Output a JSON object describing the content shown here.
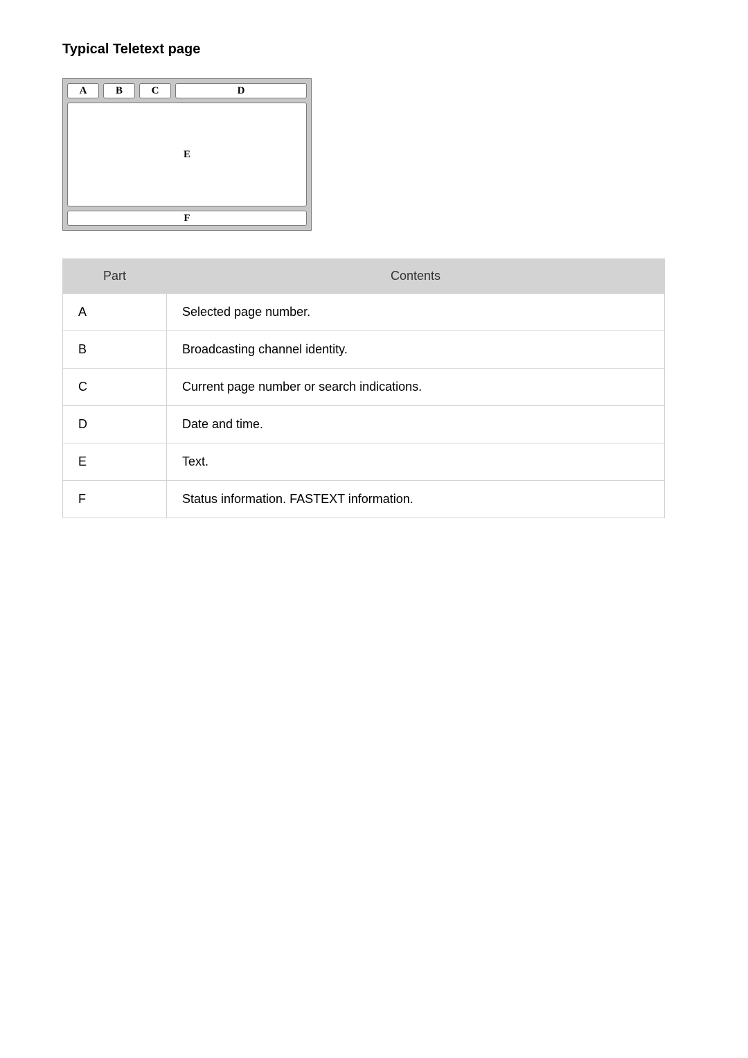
{
  "title": "Typical Teletext page",
  "diagram": {
    "background_color": "#c7c7c7",
    "border_color": "#7a7a7a",
    "cell_background": "#ffffff",
    "label_font": "serif",
    "top": [
      "A",
      "B",
      "C",
      "D"
    ],
    "middle": "E",
    "bottom": "F"
  },
  "table": {
    "columns": [
      "Part",
      "Contents"
    ],
    "rows": [
      [
        "A",
        "Selected page number."
      ],
      [
        "B",
        "Broadcasting channel identity."
      ],
      [
        "C",
        "Current page number or search indications."
      ],
      [
        "D",
        "Date and time."
      ],
      [
        "E",
        "Text."
      ],
      [
        "F",
        "Status information. FASTEXT information."
      ]
    ],
    "header_bg": "#d3d3d3",
    "border_color": "#d3d3d3",
    "font_size_pt": 14
  }
}
